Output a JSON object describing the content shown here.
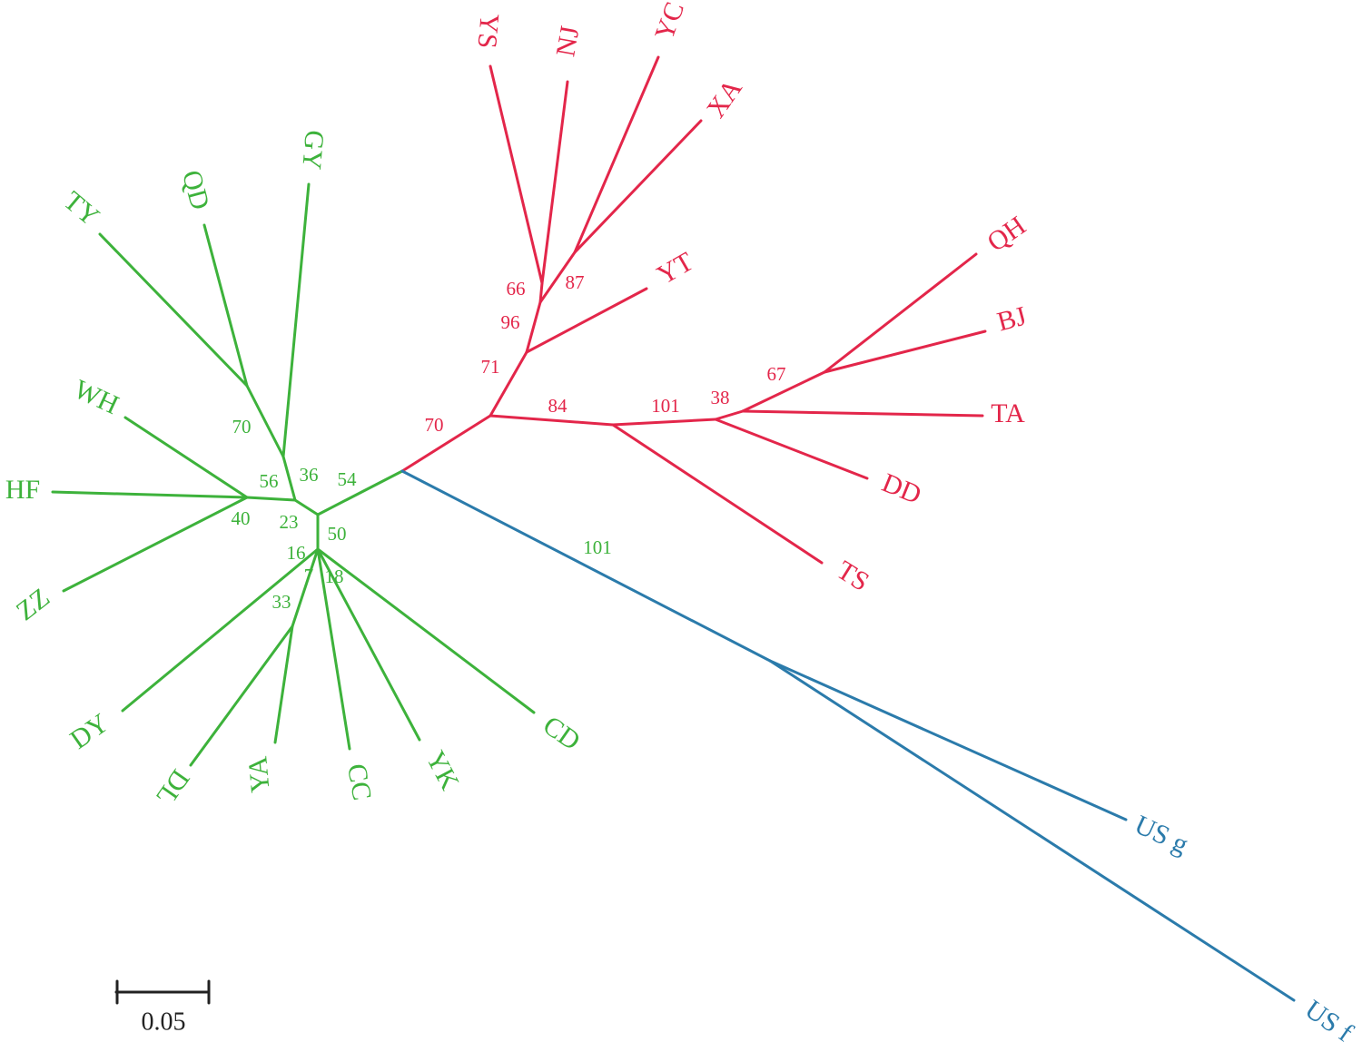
{
  "clades": [
    {
      "color": "#e3264a",
      "leaves": [
        "YS",
        "NJ",
        "YC",
        "XA",
        "YT",
        "QH",
        "BJ",
        "TA",
        "DD",
        "TS"
      ],
      "support": [
        66,
        87,
        96,
        71,
        70,
        84,
        101,
        38,
        67
      ]
    },
    {
      "color": "#3db23b",
      "leaves": [
        "GY",
        "QD",
        "TY",
        "WH",
        "HF",
        "ZZ",
        "DY",
        "DL",
        "YA",
        "CC",
        "YK",
        "CD"
      ],
      "support": [
        70,
        56,
        36,
        54,
        40,
        23,
        50,
        16,
        7,
        18,
        33,
        101
      ]
    },
    {
      "color": "#2b7bab",
      "leaves": [
        "US g",
        "US f"
      ],
      "support": []
    }
  ],
  "scale_bar": {
    "label": "0.05"
  }
}
